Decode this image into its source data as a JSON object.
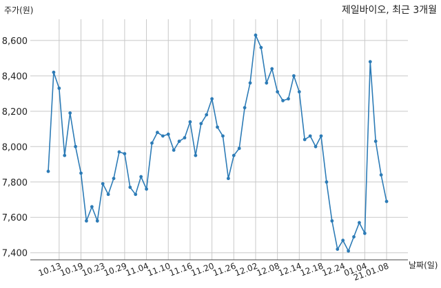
{
  "chart_data": {
    "type": "line",
    "title": "제일바이오, 최근 3개월",
    "ylabel": "주가(원)",
    "xlabel": "날짜(일)",
    "ylim": [
      7360,
      8720
    ],
    "grid": true,
    "yticks": [
      7400,
      7600,
      7800,
      8000,
      8200,
      8400,
      8600
    ],
    "ytick_labels": [
      "7,400",
      "7,600",
      "7,800",
      "8,000",
      "8,200",
      "8,400",
      "8,600"
    ],
    "xtick_labels": [
      "10.13",
      "10.19",
      "10.23",
      "10.29",
      "11.04",
      "11.10",
      "11.16",
      "11.20",
      "11.26",
      "12.02",
      "12.08",
      "12.14",
      "12.18",
      "12.24",
      "01.04",
      "21.01.08"
    ],
    "xtick_index": [
      2,
      6,
      10,
      14,
      18,
      22,
      26,
      30,
      34,
      38,
      42,
      46,
      50,
      54,
      58,
      62
    ],
    "series": [
      {
        "color": "#2c7bb6",
        "values": [
          7860,
          8420,
          8330,
          7950,
          8190,
          8000,
          7850,
          7580,
          7660,
          7580,
          7790,
          7730,
          7820,
          7970,
          7960,
          7770,
          7730,
          7830,
          7760,
          8020,
          8080,
          8060,
          8070,
          7980,
          8030,
          8050,
          8140,
          7950,
          8130,
          8180,
          8270,
          8110,
          8060,
          7820,
          7950,
          7990,
          8220,
          8360,
          8630,
          8560,
          8360,
          8440,
          8310,
          8260,
          8270,
          8400,
          8310,
          8040,
          8060,
          8000,
          8060,
          7800,
          7580,
          7420,
          7470,
          7410,
          7490,
          7570,
          7510,
          8480,
          8030,
          7840,
          7690
        ]
      }
    ]
  }
}
